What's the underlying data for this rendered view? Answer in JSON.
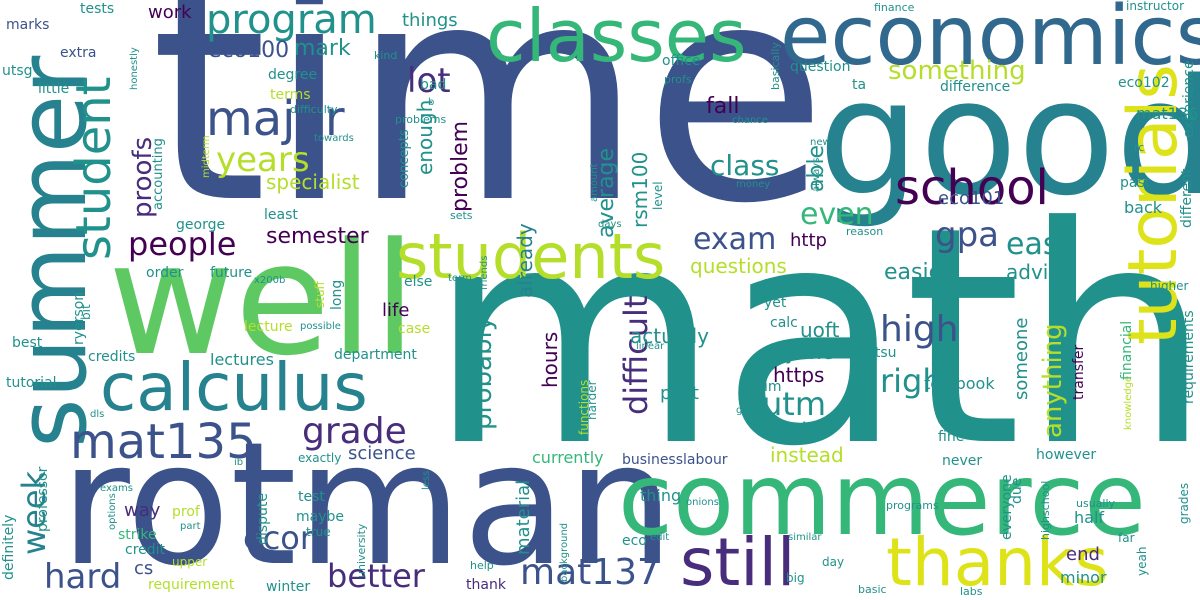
{
  "palette": {
    "navy": "#3b528b",
    "slate": "#31688e",
    "purple": "#440154",
    "indigo": "#472d7b",
    "teal": "#21918c",
    "teal2": "#26828e",
    "green": "#35b779",
    "mint": "#5ec962",
    "lime": "#b5de2b",
    "yellow": "#dde318",
    "lightgreen": "#90d743"
  },
  "words": {
    "time": "time",
    "math": "math",
    "rotman": "rotman",
    "good": "good",
    "well": "well",
    "summer": "summer",
    "economics": "economics",
    "commerce": "commerce",
    "classes": "classes",
    "calculus": "calculus",
    "students": "students",
    "tutorials": "tutorials",
    "still": "still",
    "thanks": "thanks",
    "mat135": "mat135",
    "major": "major",
    "school": "school",
    "student": "student",
    "program": "program",
    "years": "years",
    "people": "people",
    "better": "better",
    "mat137": "mat137",
    "hard": "hard",
    "econ": "econ",
    "grade": "grade",
    "high": "high",
    "right": "right",
    "utm": "utm",
    "gpa": "gpa",
    "easy": "easy",
    "exam": "exam",
    "even": "even",
    "week": "week",
    "lot": "lot",
    "something": "something",
    "class": "class",
    "difficult": "difficult",
    "anything": "anything",
    "probably": "probably",
    "proofs": "proofs",
    "specialist": "specialist",
    "semester": "semester",
    "mark": "mark",
    "eco100": "eco100",
    "enough": "enough",
    "problem": "problem",
    "average": "average",
    "rsm100": "rsm100",
    "able": "able",
    "fall": "fall",
    "easier": "easier",
    "questions": "questions",
    "advice": "advice",
    "http": "http",
    "https": "https",
    "actually": "actually",
    "anyone": "anyone",
    "uoft": "uoft",
    "final": "final",
    "instead": "instead",
    "post": "post",
    "hours": "hours",
    "already": "already",
    "eco101": "eco101",
    "someone": "someone",
    "material": "material",
    "science": "science",
    "lectures": "lectures",
    "credits": "credits",
    "lecture": "lecture",
    "life": "life",
    "work": "work",
    "marks": "marks",
    "tests": "tests",
    "utsg": "utsg",
    "extra": "extra",
    "little": "little",
    "degree": "degree",
    "terms": "terms",
    "accounting": "accounting",
    "george": "george",
    "least": "least",
    "order": "order",
    "future": "future",
    "ryerson": "ryerson",
    "best": "best",
    "tutorial": "tutorial",
    "cs": "cs",
    "way": "way",
    "credit": "credit",
    "strike": "strike",
    "prof": "prof",
    "upper": "upper",
    "requirement": "requirement",
    "professor": "professor",
    "definitely": "definitely",
    "options": "options",
    "exams": "exams",
    "dls": "dls",
    "ib": "ib",
    "exactly": "exactly",
    "test": "test",
    "maybe": "maybe",
    "dispute": "dispute",
    "true": "true",
    "winter": "winter",
    "university": "university",
    "background": "background",
    "part": "part",
    "less": "less",
    "currently": "currently",
    "businesslabour": "businesslabour",
    "thing": "thing",
    "thank": "thank",
    "eco": "eco",
    "help": "help",
    "similar": "similar",
    "edit": "edit",
    "big": "big",
    "day": "day",
    "basic": "basic",
    "labs": "labs",
    "end": "end",
    "minor": "minor",
    "half": "half",
    "however": "however",
    "everyone": "everyone",
    "due": "due",
    "highschool": "highschool",
    "usually": "usually",
    "onions": "onions",
    "programs": "programs",
    "never": "never",
    "fine": "fine",
    "textbook": "textbook",
    "transfer": "transfer",
    "requirements": "requirements",
    "knowledge": "knowledge",
    "financial": "financial",
    "grades": "grades",
    "far": "far",
    "yeah": "yeah",
    "higher": "higher",
    "different": "different",
    "experience": "experience",
    "back": "back",
    "past": "past",
    "rc": "rc",
    "mat136": "mat136",
    "eco102": "eco102",
    "instructor": "instructor",
    "finance": "finance",
    "basically": "basically",
    "question": "question",
    "ta": "ta",
    "difference": "difference",
    "office": "office",
    "profs": "profs",
    "things": "things",
    "kind": "kind",
    "honestly": "honestly",
    "difficulty": "difficulty",
    "towards": "towards",
    "problems": "problems",
    "bad": "bad",
    "concepts": "concepts",
    "midterm": "midterm",
    "chance": "chance",
    "amount": "amount",
    "days": "days",
    "money": "money",
    "new": "new",
    "always": "always",
    "level": "level",
    "sets": "sets",
    "reason": "reason",
    "useful": "useful",
    "yet": "yet",
    "calc": "calc",
    "full": "full",
    "utsu": "utsu",
    "im": "im",
    "great": "great",
    "harder": "harder",
    "functions": "functions",
    "linear": "linear",
    "friends": "friends",
    "na": "na",
    "term": "term",
    "x200b": "x200b",
    "bit": "bit",
    "long": "long",
    "else": "else",
    "stuff": "stuff",
    "case": "case",
    "possible": "possible",
    "department": "department",
    "b": "b"
  }
}
